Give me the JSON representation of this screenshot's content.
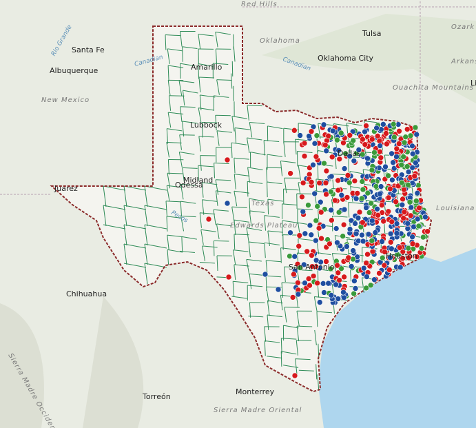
{
  "labels": [
    "Red Hills",
    "Oklahoma",
    "Tulsa",
    "Ozark Plateau",
    "Santa Fe",
    "Rio Grande",
    "Canadian",
    "Canadian",
    "Oklahoma City",
    "Arkans",
    "Albuquerque",
    "Amarillo",
    "New Mexico",
    "Ouachita Mountains",
    "Li",
    "Lubbock",
    "Dallas",
    "Midland",
    "Odessa",
    "Juarez",
    "Texas",
    "Edwards Plateau",
    "Louisiana",
    "Pecos",
    "San Antonio",
    "Houston",
    "Chihuahua",
    "Sierra Madre Occidental",
    "Torreón",
    "Monterrey",
    "Sierra Madre Oriental"
  ]
}
